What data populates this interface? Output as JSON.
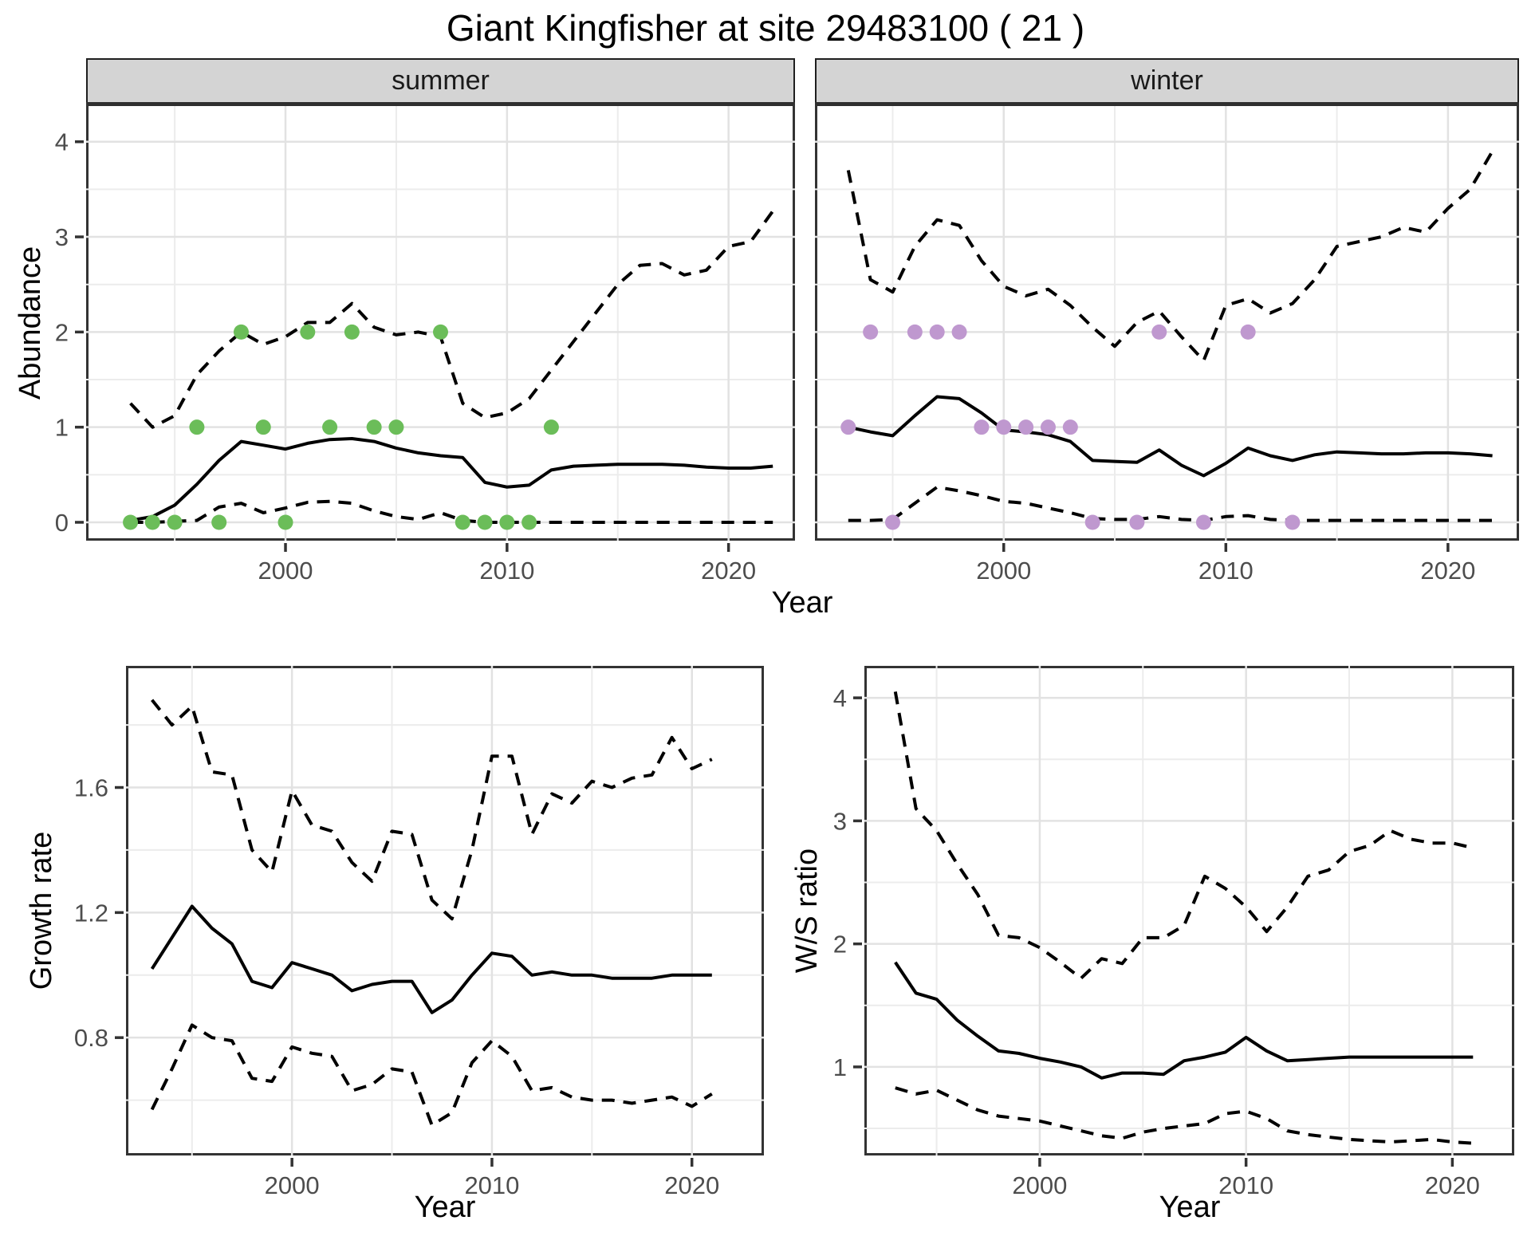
{
  "title": "Giant Kingfisher at site 29483100 ( 21 )",
  "colors": {
    "summer_points": "#6bbd59",
    "winter_points": "#bf98cf",
    "line": "#000000",
    "gridline_major": "#e2e2e2",
    "gridline_minor": "#ececec",
    "tick_mark": "#333333",
    "tick_label": "#4d4d4d",
    "strip_bg": "#d4d4d4",
    "panel_border": "#333333"
  },
  "chart_data": [
    {
      "id": "summer",
      "type": "line",
      "facet_label": "summer",
      "xlabel": "Year",
      "ylabel": "Abundance",
      "xlim": [
        1991.0,
        2023.0
      ],
      "ylim": [
        -0.193,
        4.375
      ],
      "xticks": [
        2000,
        2010,
        2020
      ],
      "xminor": [
        1995,
        2005,
        2015
      ],
      "yticks": [
        0,
        1,
        2,
        3,
        4
      ],
      "yminor": [
        0.5,
        1.5,
        2.5,
        3.5
      ],
      "x": [
        1993,
        1994,
        1995,
        1996,
        1997,
        1998,
        1999,
        2000,
        2001,
        2002,
        2003,
        2004,
        2005,
        2006,
        2007,
        2008,
        2009,
        2010,
        2011,
        2012,
        2013,
        2014,
        2015,
        2016,
        2017,
        2018,
        2019,
        2020,
        2021,
        2022
      ],
      "series": [
        {
          "name": "lower_ci",
          "style": "dashed",
          "values": [
            0.0,
            0.0,
            0.01,
            0.02,
            0.16,
            0.2,
            0.1,
            0.15,
            0.21,
            0.22,
            0.2,
            0.12,
            0.06,
            0.03,
            0.1,
            0.02,
            0.0,
            0.0,
            0.0,
            0.0,
            0.0,
            0.0,
            0.0,
            0.0,
            0.0,
            0.0,
            0.0,
            0.0,
            0.0,
            0.0
          ]
        },
        {
          "name": "upper_ci",
          "style": "dashed",
          "values": [
            1.25,
            1.0,
            1.12,
            1.55,
            1.8,
            2.0,
            1.87,
            1.95,
            2.1,
            2.1,
            2.3,
            2.05,
            1.97,
            2.0,
            1.95,
            1.25,
            1.1,
            1.15,
            1.3,
            1.6,
            1.9,
            2.2,
            2.5,
            2.7,
            2.72,
            2.6,
            2.65,
            2.9,
            2.95,
            3.27
          ]
        },
        {
          "name": "median",
          "style": "solid",
          "values": [
            0.02,
            0.06,
            0.18,
            0.4,
            0.65,
            0.85,
            0.81,
            0.77,
            0.83,
            0.87,
            0.88,
            0.85,
            0.78,
            0.73,
            0.7,
            0.68,
            0.42,
            0.37,
            0.39,
            0.55,
            0.59,
            0.6,
            0.61,
            0.61,
            0.61,
            0.6,
            0.58,
            0.57,
            0.57,
            0.59
          ]
        }
      ],
      "points": {
        "name": "observed_counts",
        "color_key": "summer_points",
        "data": [
          [
            1993,
            0
          ],
          [
            1994,
            0
          ],
          [
            1995,
            0
          ],
          [
            1996,
            1
          ],
          [
            1997,
            0
          ],
          [
            1998,
            2
          ],
          [
            1999,
            1
          ],
          [
            2000,
            0
          ],
          [
            2001,
            2
          ],
          [
            2002,
            1
          ],
          [
            2003,
            2
          ],
          [
            2004,
            1
          ],
          [
            2005,
            1
          ],
          [
            2007,
            2
          ],
          [
            2008,
            0
          ],
          [
            2009,
            0
          ],
          [
            2010,
            0
          ],
          [
            2011,
            0
          ],
          [
            2012,
            1
          ]
        ]
      }
    },
    {
      "id": "winter",
      "type": "line",
      "facet_label": "winter",
      "xlabel": "Year",
      "ylabel": "Abundance",
      "xlim": [
        1991.5,
        2023.2
      ],
      "ylim": [
        -0.193,
        4.375
      ],
      "xticks": [
        2000,
        2010,
        2020
      ],
      "xminor": [
        1995,
        2005,
        2015
      ],
      "yticks": [
        0,
        1,
        2,
        3,
        4
      ],
      "yminor": [
        0.5,
        1.5,
        2.5,
        3.5
      ],
      "x": [
        1993,
        1994,
        1995,
        1996,
        1997,
        1998,
        1999,
        2000,
        2001,
        2002,
        2003,
        2004,
        2005,
        2006,
        2007,
        2008,
        2009,
        2010,
        2011,
        2012,
        2013,
        2014,
        2015,
        2016,
        2017,
        2018,
        2019,
        2020,
        2021,
        2022
      ],
      "series": [
        {
          "name": "lower_ci",
          "style": "dashed",
          "values": [
            0.02,
            0.02,
            0.03,
            0.2,
            0.37,
            0.33,
            0.28,
            0.22,
            0.2,
            0.15,
            0.1,
            0.04,
            0.03,
            0.03,
            0.06,
            0.03,
            0.02,
            0.06,
            0.07,
            0.03,
            0.02,
            0.02,
            0.02,
            0.02,
            0.02,
            0.02,
            0.02,
            0.02,
            0.02,
            0.02
          ]
        },
        {
          "name": "upper_ci",
          "style": "dashed",
          "values": [
            3.7,
            2.55,
            2.42,
            2.9,
            3.18,
            3.12,
            2.75,
            2.48,
            2.38,
            2.45,
            2.28,
            2.05,
            1.85,
            2.1,
            2.22,
            1.95,
            1.7,
            2.28,
            2.35,
            2.2,
            2.3,
            2.55,
            2.9,
            2.95,
            3.0,
            3.1,
            3.05,
            3.3,
            3.5,
            3.9
          ]
        },
        {
          "name": "median",
          "style": "solid",
          "values": [
            1.0,
            0.95,
            0.91,
            1.12,
            1.32,
            1.3,
            1.15,
            0.97,
            0.95,
            0.92,
            0.85,
            0.65,
            0.64,
            0.63,
            0.76,
            0.6,
            0.49,
            0.62,
            0.78,
            0.7,
            0.65,
            0.71,
            0.74,
            0.73,
            0.72,
            0.72,
            0.73,
            0.73,
            0.72,
            0.7
          ]
        }
      ],
      "points": {
        "name": "observed_counts",
        "color_key": "winter_points",
        "data": [
          [
            1993,
            1
          ],
          [
            1994,
            2
          ],
          [
            1995,
            0
          ],
          [
            1996,
            2
          ],
          [
            1997,
            2
          ],
          [
            1998,
            2
          ],
          [
            1999,
            1
          ],
          [
            2000,
            1
          ],
          [
            2001,
            1
          ],
          [
            2002,
            1
          ],
          [
            2003,
            1
          ],
          [
            2004,
            0
          ],
          [
            2006,
            0
          ],
          [
            2007,
            2
          ],
          [
            2009,
            0
          ],
          [
            2011,
            2
          ],
          [
            2013,
            0
          ]
        ]
      }
    },
    {
      "id": "growth",
      "type": "line",
      "facet_label": "",
      "xlabel": "Year",
      "ylabel": "Growth rate",
      "xlim": [
        1991.7,
        2023.6
      ],
      "ylim": [
        0.423,
        1.989
      ],
      "xticks": [
        2000,
        2010,
        2020
      ],
      "xminor": [
        1995,
        2005,
        2015
      ],
      "yticks": [
        0.8,
        1.2,
        1.6
      ],
      "yminor": [
        0.6,
        1.0,
        1.4,
        1.8
      ],
      "x": [
        1993,
        1994,
        1995,
        1996,
        1997,
        1998,
        1999,
        2000,
        2001,
        2002,
        2003,
        2004,
        2005,
        2006,
        2007,
        2008,
        2009,
        2010,
        2011,
        2012,
        2013,
        2014,
        2015,
        2016,
        2017,
        2018,
        2019,
        2020,
        2021
      ],
      "series": [
        {
          "name": "lower_ci",
          "style": "dashed",
          "values": [
            0.57,
            0.7,
            0.84,
            0.8,
            0.79,
            0.67,
            0.66,
            0.77,
            0.75,
            0.74,
            0.63,
            0.65,
            0.7,
            0.69,
            0.52,
            0.56,
            0.72,
            0.79,
            0.74,
            0.63,
            0.64,
            0.61,
            0.6,
            0.6,
            0.59,
            0.6,
            0.61,
            0.58,
            0.62
          ]
        },
        {
          "name": "upper_ci",
          "style": "dashed",
          "values": [
            1.88,
            1.8,
            1.86,
            1.65,
            1.64,
            1.4,
            1.33,
            1.59,
            1.48,
            1.46,
            1.36,
            1.3,
            1.46,
            1.45,
            1.24,
            1.18,
            1.4,
            1.7,
            1.7,
            1.45,
            1.58,
            1.55,
            1.62,
            1.6,
            1.63,
            1.64,
            1.76,
            1.66,
            1.69
          ]
        },
        {
          "name": "median",
          "style": "solid",
          "values": [
            1.02,
            1.12,
            1.22,
            1.15,
            1.1,
            0.98,
            0.96,
            1.04,
            1.02,
            1.0,
            0.95,
            0.97,
            0.98,
            0.98,
            0.88,
            0.92,
            1.0,
            1.07,
            1.06,
            1.0,
            1.01,
            1.0,
            1.0,
            0.99,
            0.99,
            0.99,
            1.0,
            1.0,
            1.0
          ]
        }
      ],
      "points": null
    },
    {
      "id": "ws",
      "type": "line",
      "facet_label": "",
      "xlabel": "Year",
      "ylabel": "W/S ratio",
      "xlim": [
        1991.5,
        2023.0
      ],
      "ylim": [
        0.28,
        4.26
      ],
      "xticks": [
        2000,
        2010,
        2020
      ],
      "xminor": [
        1995,
        2005,
        2015
      ],
      "yticks": [
        1,
        2,
        3,
        4
      ],
      "yminor": [
        0.5,
        1.5,
        2.5,
        3.5
      ],
      "x": [
        1993,
        1994,
        1995,
        1996,
        1997,
        1998,
        1999,
        2000,
        2001,
        2002,
        2003,
        2004,
        2005,
        2006,
        2007,
        2008,
        2009,
        2010,
        2011,
        2012,
        2013,
        2014,
        2015,
        2016,
        2017,
        2018,
        2019,
        2020,
        2021
      ],
      "series": [
        {
          "name": "lower_ci",
          "style": "dashed",
          "values": [
            0.83,
            0.78,
            0.81,
            0.73,
            0.65,
            0.6,
            0.58,
            0.56,
            0.52,
            0.48,
            0.44,
            0.42,
            0.47,
            0.5,
            0.52,
            0.54,
            0.62,
            0.64,
            0.58,
            0.48,
            0.45,
            0.43,
            0.41,
            0.4,
            0.39,
            0.4,
            0.41,
            0.39,
            0.38
          ]
        },
        {
          "name": "upper_ci",
          "style": "dashed",
          "values": [
            4.05,
            3.1,
            2.92,
            2.65,
            2.4,
            2.07,
            2.05,
            1.97,
            1.85,
            1.72,
            1.88,
            1.84,
            2.05,
            2.05,
            2.15,
            2.55,
            2.45,
            2.3,
            2.1,
            2.3,
            2.55,
            2.6,
            2.75,
            2.8,
            2.92,
            2.85,
            2.82,
            2.82,
            2.78
          ]
        },
        {
          "name": "median",
          "style": "solid",
          "values": [
            1.85,
            1.6,
            1.55,
            1.38,
            1.25,
            1.13,
            1.11,
            1.07,
            1.04,
            1.0,
            0.91,
            0.95,
            0.95,
            0.94,
            1.05,
            1.08,
            1.12,
            1.24,
            1.13,
            1.05,
            1.06,
            1.07,
            1.08,
            1.08,
            1.08,
            1.08,
            1.08,
            1.08,
            1.08
          ]
        }
      ],
      "points": null
    }
  ]
}
